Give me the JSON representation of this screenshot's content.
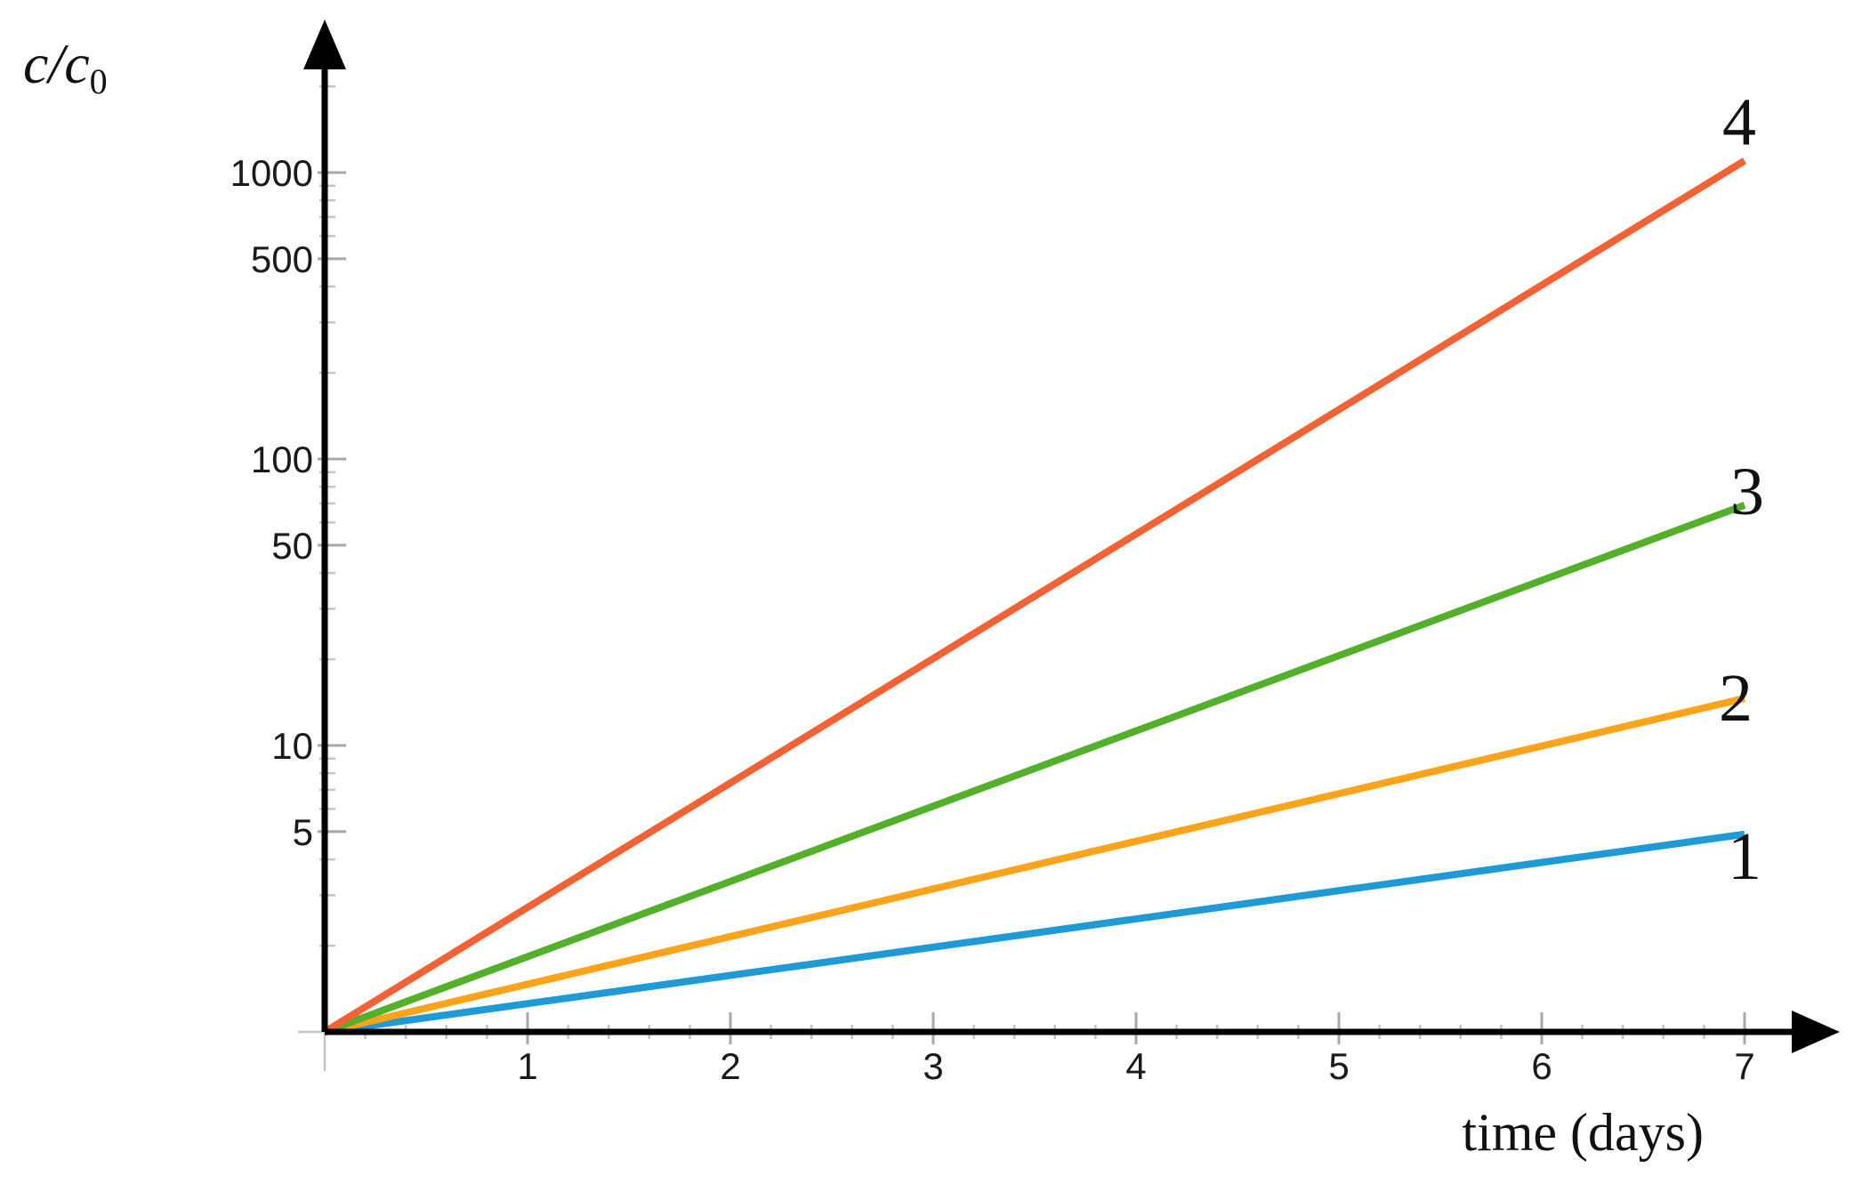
{
  "chart_data": {
    "type": "line",
    "title": "",
    "xlabel": "time (days)",
    "ylabel": {
      "main": "c/c",
      "subscript": "0"
    },
    "y_scale": "log",
    "xlim": [
      0,
      7
    ],
    "ylim": [
      1,
      2000
    ],
    "x_ticks": [
      1,
      2,
      3,
      4,
      5,
      6,
      7
    ],
    "y_ticks": [
      5,
      10,
      50,
      100,
      500,
      1000
    ],
    "grid": false,
    "legend": "none",
    "series": [
      {
        "name": "1",
        "color": "#1e9ad6",
        "x": [
          0,
          7
        ],
        "y": [
          1,
          4.9
        ]
      },
      {
        "name": "2",
        "color": "#ffa31a",
        "x": [
          0,
          7
        ],
        "y": [
          1,
          14.6
        ]
      },
      {
        "name": "3",
        "color": "#52b02a",
        "x": [
          0,
          7
        ],
        "y": [
          1,
          69
        ]
      },
      {
        "name": "4",
        "color": "#f26234",
        "x": [
          0,
          7
        ],
        "y": [
          1,
          1100
        ]
      }
    ]
  }
}
